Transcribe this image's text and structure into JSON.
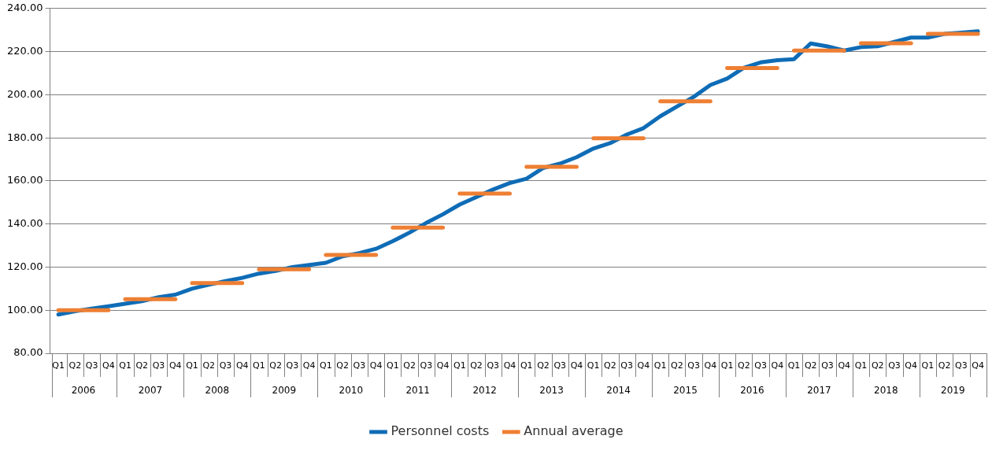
{
  "chart_data": {
    "type": "line",
    "categories": [
      "Q1",
      "Q2",
      "Q3",
      "Q4",
      "Q1",
      "Q2",
      "Q3",
      "Q4",
      "Q1",
      "Q2",
      "Q3",
      "Q4",
      "Q1",
      "Q2",
      "Q3",
      "Q4",
      "Q1",
      "Q2",
      "Q3",
      "Q4",
      "Q1",
      "Q2",
      "Q3",
      "Q4",
      "Q1",
      "Q2",
      "Q3",
      "Q4",
      "Q1",
      "Q2",
      "Q3",
      "Q4",
      "Q1",
      "Q2",
      "Q3",
      "Q4",
      "Q1",
      "Q2",
      "Q3",
      "Q4",
      "Q1",
      "Q2",
      "Q3",
      "Q4",
      "Q1",
      "Q2",
      "Q3",
      "Q4",
      "Q1",
      "Q2",
      "Q3",
      "Q4",
      "Q1",
      "Q2",
      "Q3",
      "Q4"
    ],
    "annotations": [
      "2006",
      "2007",
      "2008",
      "2009",
      "2010",
      "2011",
      "2012",
      "2013",
      "2014",
      "2015",
      "2016",
      "2017",
      "2018",
      "2019"
    ],
    "series": [
      {
        "name": "Personnel costs",
        "color": "#0f6cb6",
        "values": [
          98.0,
          99.5,
          100.7,
          101.8,
          103.0,
          104.2,
          106.0,
          107.2,
          110.0,
          111.8,
          113.5,
          115.0,
          117.0,
          118.2,
          120.0,
          121.0,
          122.0,
          125.0,
          126.5,
          128.5,
          132.0,
          136.0,
          140.5,
          144.5,
          149.0,
          152.5,
          156.0,
          159.0,
          161.0,
          166.0,
          168.0,
          171.0,
          175.0,
          177.5,
          181.5,
          184.5,
          190.0,
          194.5,
          199.0,
          204.5,
          207.5,
          212.5,
          215.0,
          216.0,
          216.5,
          223.8,
          222.4,
          220.5,
          222.1,
          222.5,
          224.5,
          226.5,
          226.5,
          228.2,
          228.8,
          229.4
        ]
      },
      {
        "name": "Annual average",
        "color": "#ee7f33",
        "values": [
          100.0,
          100.0,
          100.0,
          100.0,
          105.1,
          105.1,
          105.1,
          105.1,
          112.6,
          112.6,
          112.6,
          112.6,
          119.0,
          119.0,
          119.0,
          119.0,
          125.6,
          125.6,
          125.6,
          125.6,
          138.3,
          138.3,
          138.3,
          138.3,
          154.1,
          154.1,
          154.1,
          154.1,
          166.5,
          166.5,
          166.5,
          166.5,
          179.8,
          179.8,
          179.8,
          179.8,
          196.9,
          196.9,
          196.9,
          196.9,
          212.4,
          212.4,
          212.4,
          212.4,
          220.5,
          220.5,
          220.5,
          220.5,
          223.9,
          223.9,
          223.9,
          223.9,
          228.2,
          228.2,
          228.2,
          228.2
        ]
      }
    ],
    "ylim": [
      80,
      240
    ],
    "yticks": [
      {
        "value": 80,
        "label": "80.00"
      },
      {
        "value": 100,
        "label": "100.00"
      },
      {
        "value": 120,
        "label": "120.00"
      },
      {
        "value": 140,
        "label": "140.00"
      },
      {
        "value": 160,
        "label": "160.00"
      },
      {
        "value": 180,
        "label": "180.00"
      },
      {
        "value": 200,
        "label": "200.00"
      },
      {
        "value": 220,
        "label": "220.00"
      },
      {
        "value": 240,
        "label": "240.00"
      }
    ],
    "grid": "y",
    "legend": "bottom",
    "marker": "none",
    "line_style": "solid"
  }
}
